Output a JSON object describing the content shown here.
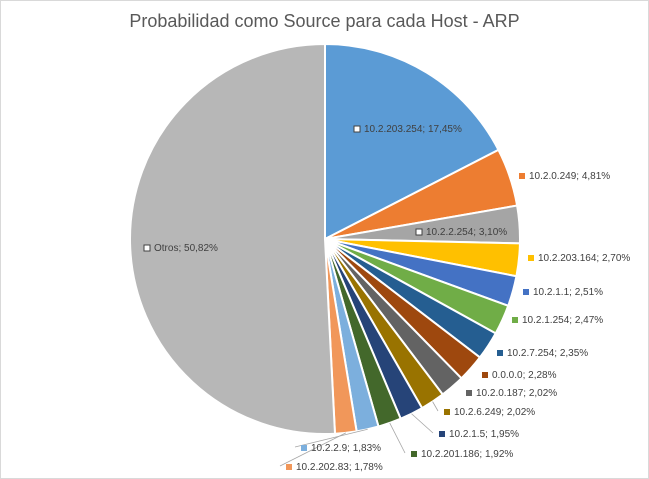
{
  "chart_data": {
    "type": "pie",
    "title": "Probabilidad como Source para cada Host - ARP",
    "slices": [
      {
        "label": "10.2.203.254; 17,45%",
        "value": 17.45,
        "color": "#5b9bd5"
      },
      {
        "label": "10.2.0.249; 4,81%",
        "value": 4.81,
        "color": "#ed7d31"
      },
      {
        "label": "10.2.2.254; 3,10%",
        "value": 3.1,
        "color": "#a5a5a5"
      },
      {
        "label": "10.2.203.164; 2,70%",
        "value": 2.7,
        "color": "#ffc000"
      },
      {
        "label": "10.2.1.1; 2,51%",
        "value": 2.51,
        "color": "#4472c4"
      },
      {
        "label": "10.2.1.254; 2,47%",
        "value": 2.47,
        "color": "#70ad47"
      },
      {
        "label": "10.2.7.254; 2,35%",
        "value": 2.35,
        "color": "#255e91"
      },
      {
        "label": "0.0.0.0; 2,28%",
        "value": 2.28,
        "color": "#9e480e"
      },
      {
        "label": "10.2.0.187; 2,02%",
        "value": 2.02,
        "color": "#636363"
      },
      {
        "label": "10.2.6.249; 2,02%",
        "value": 2.02,
        "color": "#997300"
      },
      {
        "label": "10.2.1.5; 1,95%",
        "value": 1.95,
        "color": "#264478"
      },
      {
        "label": "10.2.201.186; 1,92%",
        "value": 1.92,
        "color": "#43682b"
      },
      {
        "label": "10.2.2.9; 1,83%",
        "value": 1.83,
        "color": "#7cafdd"
      },
      {
        "label": "10.2.202.83; 1,78%",
        "value": 1.78,
        "color": "#f1975a"
      },
      {
        "label": "Otros; 50,82%",
        "value": 50.82,
        "color": "#b7b7b7"
      }
    ]
  }
}
